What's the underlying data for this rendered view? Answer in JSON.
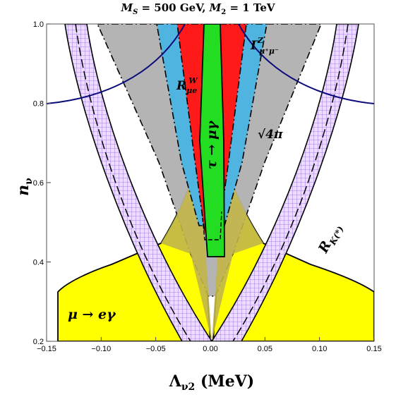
{
  "title": "M_S = 500 GeV, M_2 = 1 TeV",
  "chart_data": {
    "type": "area",
    "title": "M_S = 500 GeV, M_2 = 1 TeV",
    "xlabel": "Λν2 (MeV)",
    "ylabel": "nν",
    "xlim": [
      -0.15,
      0.15
    ],
    "ylim": [
      0.2,
      1.0
    ],
    "xticks": [
      "-0.15",
      "-0.10",
      "-0.05",
      "0.00",
      "0.05",
      "0.10",
      "0.15"
    ],
    "yticks": [
      "0.2",
      "0.4",
      "0.6",
      "0.8",
      "1.0"
    ],
    "grid": false,
    "legend": "none",
    "colors": {
      "mu_e_gamma": "#ffff00",
      "sqrt4pi_gray": "#b4b4b4",
      "R_mue_W": "#4fb4e0",
      "Gamma_Z_mumu": "#ff1a1a",
      "tau_mu_gamma": "#22dd22",
      "R_K": "#c9a7f0",
      "blue_curve": "#000080"
    },
    "annotations": [
      {
        "id": "mu_e_gamma",
        "label": "μ → eγ",
        "x": -0.115,
        "y": 0.27
      },
      {
        "id": "R_mue_W",
        "label": "R^W_μe",
        "x": -0.025,
        "y": 0.905
      },
      {
        "id": "Gamma_Z",
        "label": "Γ^Z_μ+μ−",
        "x": 0.048,
        "y": 0.945
      },
      {
        "id": "sqrt4pi",
        "label": "√4π",
        "x": 0.072,
        "y": 0.72
      },
      {
        "id": "tau_mu_gamma",
        "label": "τ → μγ",
        "x": 0.0,
        "y": 0.74
      },
      {
        "id": "R_K",
        "label": "R_K(*)",
        "x": 0.116,
        "y": 0.52
      }
    ],
    "series": [
      {
        "region": "mu_e_gamma",
        "boundary_x": [
          -0.15,
          -0.12,
          -0.085,
          -0.06,
          -0.045,
          -0.025,
          -0.012,
          0.0,
          0.012,
          0.025,
          0.045,
          0.06,
          0.085,
          0.12,
          0.15
        ],
        "boundary_y": [
          0.32,
          0.34,
          0.375,
          0.43,
          0.5,
          0.6,
          0.7,
          0.8,
          0.7,
          0.6,
          0.5,
          0.43,
          0.375,
          0.34,
          0.32
        ]
      },
      {
        "region": "blue_curve",
        "x": [
          -0.15,
          -0.12,
          -0.09,
          -0.06,
          -0.04,
          -0.025,
          0.025,
          0.04,
          0.06,
          0.09,
          0.12,
          0.15
        ],
        "y": [
          0.8,
          0.817,
          0.84,
          0.875,
          0.915,
          0.985,
          0.985,
          0.915,
          0.875,
          0.84,
          0.817,
          0.8
        ]
      },
      {
        "region": "sqrt4pi",
        "x_at_y1": [
          -0.101,
          0.101
        ],
        "y_min": 0.34
      },
      {
        "region": "R_mue_W",
        "x_at_y1": [
          -0.04,
          0.04
        ]
      },
      {
        "region": "Gamma_Z",
        "x_at_y1": [
          -0.023,
          0.023
        ]
      },
      {
        "region": "tau_mu_gamma",
        "x_at_y1": [
          -0.011,
          0.011
        ],
        "y_min": 0.415
      },
      {
        "region": "R_K",
        "x_at_y1": [
          -0.13,
          0.13
        ],
        "y_min": 0.2
      }
    ]
  }
}
